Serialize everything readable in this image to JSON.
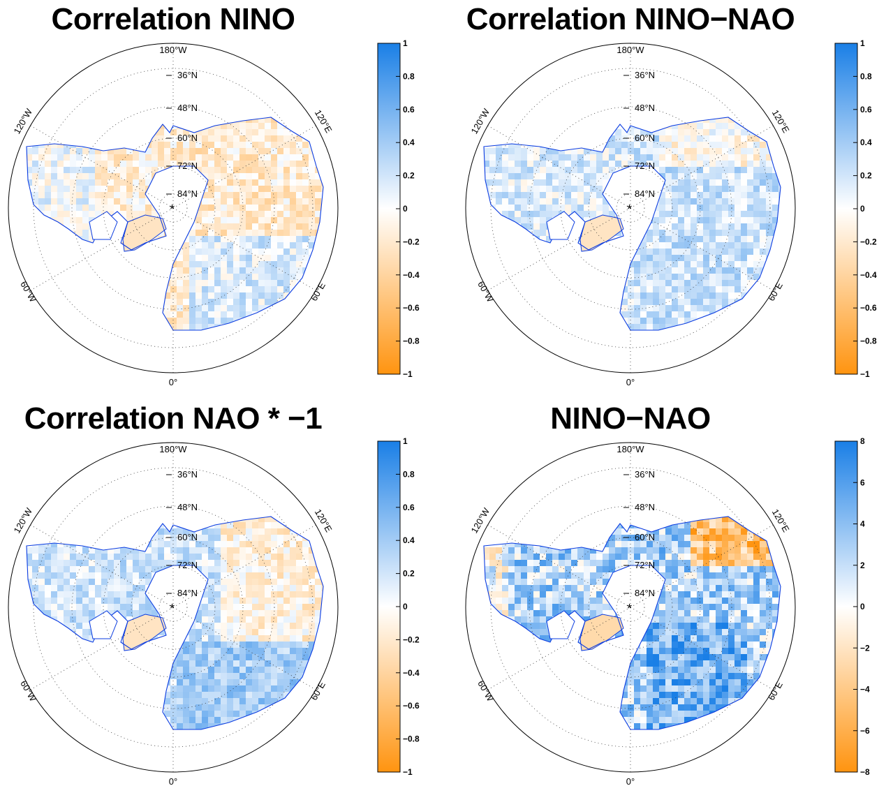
{
  "colors": {
    "positive": "#1a7fe6",
    "negative": "#ff9410",
    "zero": "#ffffff",
    "coastline": "#0a3be0",
    "circle": "#000000"
  },
  "map_labels": {
    "lat": [
      "36°N",
      "48°N",
      "60°N",
      "72°N",
      "84°N"
    ],
    "lon_top": "180°W",
    "lon_bottom": "0°",
    "lon_120w": "120°W",
    "lon_120e": "120°E",
    "lon_60w": "60°W",
    "lon_60e": "60°E",
    "pole_marker": "*"
  },
  "panels": [
    {
      "id": "correlation-nino",
      "title": "Correlation NINO",
      "colorbar_ticks": [
        "1",
        "0.8",
        "0.6",
        "0.4",
        "0.2",
        "0",
        "−0.2",
        "−0.4",
        "−0.6",
        "−0.8",
        "−1"
      ],
      "pattern": "mixed-orange"
    },
    {
      "id": "correlation-nino-nao",
      "title": "Correlation NINO−NAO",
      "colorbar_ticks": [
        "1",
        "0.8",
        "0.6",
        "0.4",
        "0.2",
        "0",
        "−0.2",
        "−0.4",
        "−0.6",
        "−0.8",
        "−1"
      ],
      "pattern": "mixed-blue"
    },
    {
      "id": "correlation-nao",
      "title": "Correlation NAO * −1",
      "colorbar_ticks": [
        "1",
        "0.8",
        "0.6",
        "0.4",
        "0.2",
        "0",
        "−0.2",
        "−0.4",
        "−0.6",
        "−0.8",
        "−1"
      ],
      "pattern": "mixed-blue-east"
    },
    {
      "id": "nino-nao",
      "title": "NINO−NAO",
      "colorbar_ticks": [
        "8",
        "6",
        "4",
        "2",
        "0",
        "−2",
        "−4",
        "−6",
        "−8"
      ],
      "pattern": "strong-blue"
    }
  ]
}
